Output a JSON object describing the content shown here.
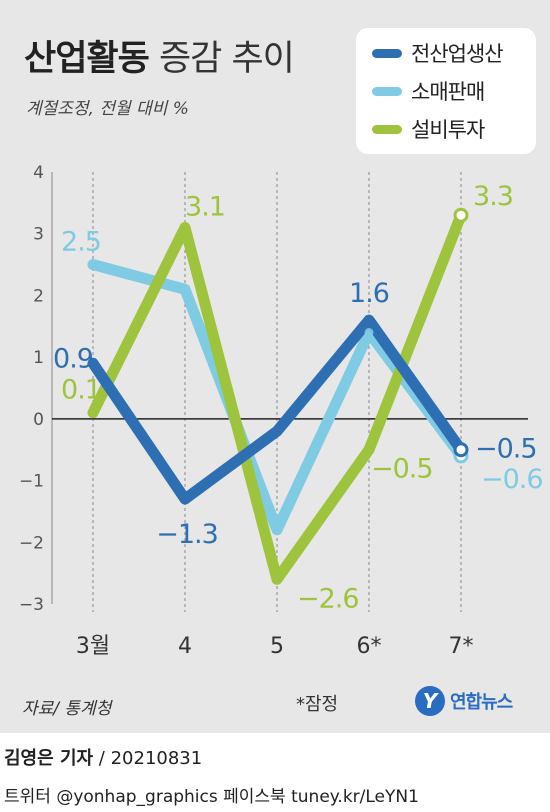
{
  "title": {
    "bold": "산업활동",
    "light": " 증감 추이"
  },
  "subtitle": "계절조정, 전월 대비 %",
  "legend": [
    {
      "name": "전산업생산",
      "color": "#2e6fb3"
    },
    {
      "name": "소매판매",
      "color": "#7ecbe3"
    },
    {
      "name": "설비투자",
      "color": "#9dc43c"
    }
  ],
  "chart_data": {
    "type": "line",
    "categories": [
      "3월",
      "4",
      "5",
      "6*",
      "7*"
    ],
    "ylim": [
      -3,
      4
    ],
    "yticks": [
      "4",
      "3",
      "2",
      "1",
      "0",
      "−1",
      "−2",
      "−3"
    ],
    "ytick_values": [
      4,
      3,
      2,
      1,
      0,
      -1,
      -2,
      -3
    ],
    "grid": false,
    "legend_position": "top-right",
    "series": [
      {
        "name": "소매판매",
        "values": [
          2.5,
          2.1,
          -1.8,
          1.4,
          -0.6
        ],
        "color": "#7ecbe3",
        "labels": [
          "2.5",
          "",
          "",
          "",
          "−0.6"
        ]
      },
      {
        "name": "설비투자",
        "values": [
          0.1,
          3.1,
          -2.6,
          -0.5,
          3.3
        ],
        "color": "#9dc43c",
        "labels": [
          "0.1",
          "3.1",
          "−2.6",
          "−0.5",
          "3.3"
        ]
      },
      {
        "name": "전산업생산",
        "values": [
          0.9,
          -1.3,
          -0.2,
          1.6,
          -0.5
        ],
        "color": "#2e6fb3",
        "labels": [
          "0.9",
          "−1.3",
          "",
          "1.6",
          "−0.5"
        ]
      }
    ]
  },
  "footer": {
    "source": "자료/ 통계청",
    "note": "*잠정",
    "logo_mark": "Y",
    "logo_text": "연합뉴스",
    "byline_name": "김영은 기자",
    "byline_date": " / 20210831",
    "credits": "트위터 @yonhap_graphics  페이스북 tuney.kr/LeYN1"
  }
}
